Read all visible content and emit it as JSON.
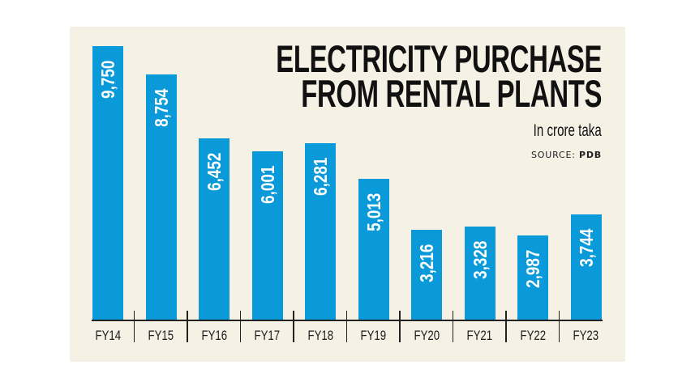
{
  "chart_data": {
    "type": "bar",
    "title": "ELECTRICITY PURCHASE FROM RENTAL PLANTS",
    "title_lines": [
      "ELECTRICITY PURCHASE",
      "FROM RENTAL PLANTS"
    ],
    "subtitle": "In crore taka",
    "source_label": "SOURCE:",
    "source_name": "PDB",
    "xlabel": "",
    "ylabel": "In crore taka",
    "categories": [
      "FY14",
      "FY15",
      "FY16",
      "FY17",
      "FY18",
      "FY19",
      "FY20",
      "FY21",
      "FY22",
      "FY23"
    ],
    "values": [
      9750,
      8754,
      6452,
      6001,
      6281,
      5013,
      3216,
      3328,
      2987,
      3744
    ],
    "value_labels": [
      "9,750",
      "8,754",
      "6,452",
      "6,001",
      "6,281",
      "5,013",
      "3,216",
      "3,328",
      "2,987",
      "3,744"
    ],
    "ylim": [
      0,
      9750
    ],
    "grid": false,
    "legend": "none",
    "colors": {
      "bar": "#0B9AD9",
      "panel_background": "#F5F1E5",
      "text": "#111111"
    }
  }
}
